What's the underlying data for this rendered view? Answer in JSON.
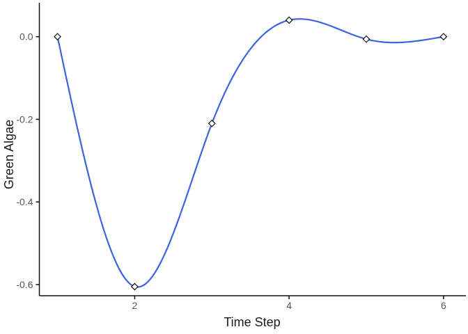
{
  "figure": {
    "background": "#ffffff"
  },
  "chart_data": {
    "type": "line",
    "title": "",
    "xlabel": "Time Step",
    "ylabel": "Green Algae",
    "series": [
      {
        "name": "Green Algae",
        "x": [
          1,
          2,
          3,
          4,
          5,
          6
        ],
        "y": [
          0.0,
          -0.605,
          -0.21,
          0.04,
          -0.006,
          0.0
        ]
      }
    ],
    "x_ticks": {
      "values": [
        2,
        4,
        6
      ],
      "labels": [
        "2",
        "4",
        "6"
      ]
    },
    "y_ticks": {
      "values": [
        0.0,
        -0.2,
        -0.4,
        -0.6
      ],
      "labels": [
        "0.0",
        "-0.2",
        "-0.4",
        "-0.6"
      ]
    },
    "xlim": [
      0.765,
      6.29
    ],
    "ylim": [
      -0.627,
      0.082
    ],
    "grid": false,
    "legend": "none",
    "smoothing": "cubic-spline",
    "line_color": "#3D62E2",
    "marker": "open-diamond",
    "marker_stroke": "#000000",
    "marker_fill": "#ffffff",
    "axis_color": "#111111",
    "tick_label_color": "#555555",
    "axis_title_color": "#1a1a1a"
  }
}
